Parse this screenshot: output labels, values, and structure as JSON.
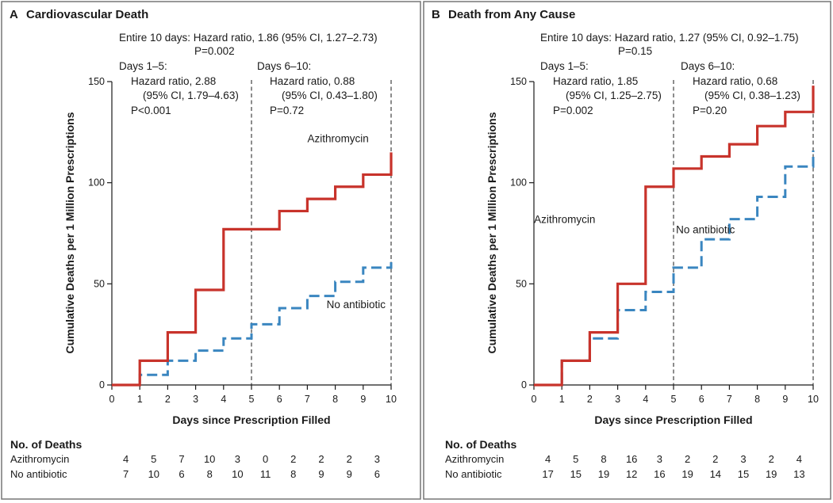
{
  "chart_data": [
    {
      "type": "line",
      "panel_letter": "A",
      "title": "Cardiovascular Death",
      "xlabel": "Days since Prescription Filled",
      "ylabel": "Cumulative Deaths per 1 Million Prescriptions",
      "xlim": [
        0,
        10
      ],
      "ylim": [
        0,
        150
      ],
      "x_ticks": [
        0,
        1,
        2,
        3,
        4,
        5,
        6,
        7,
        8,
        9,
        10
      ],
      "y_ticks": [
        0,
        50,
        100,
        150
      ],
      "reference_lines_x": [
        5,
        10
      ],
      "annotations": {
        "entire_line1": "Entire 10 days: Hazard ratio, 1.86 (95% CI, 1.27–2.73)",
        "entire_line2": "P=0.002",
        "early_line1": "Days 1–5:",
        "early_line2": "Hazard ratio, 2.88",
        "early_line3": "(95% CI, 1.79–4.63)",
        "early_line4": "P<0.001",
        "late_line1": "Days 6–10:",
        "late_line2": "Hazard ratio, 0.88",
        "late_line3": "(95% CI, 0.43–1.80)",
        "late_line4": "P=0.72"
      },
      "series": [
        {
          "name": "Azithromycin",
          "style": "solid",
          "color": "#c8332b",
          "x": [
            0,
            1,
            2,
            3,
            4,
            5,
            6,
            7,
            8,
            9,
            10
          ],
          "values": [
            0,
            12,
            26,
            47,
            77,
            77,
            86,
            92,
            98,
            104,
            115
          ],
          "label_pos": [
            9.2,
            120
          ]
        },
        {
          "name": "No antibiotic",
          "style": "dashed",
          "color": "#3a86c0",
          "x": [
            0,
            1,
            2,
            3,
            4,
            5,
            6,
            7,
            8,
            9,
            10
          ],
          "values": [
            0,
            5,
            12,
            17,
            23,
            30,
            38,
            44,
            51,
            58,
            62
          ],
          "label_pos": [
            9.8,
            38
          ]
        }
      ],
      "deaths_table": {
        "title": "No. of Deaths",
        "rows": [
          {
            "label": "Azithromycin",
            "values": [
              "4",
              "5",
              "7",
              "10",
              "3",
              "0",
              "2",
              "2",
              "2",
              "3"
            ]
          },
          {
            "label": "No antibiotic",
            "values": [
              "7",
              "10",
              "6",
              "8",
              "10",
              "11",
              "8",
              "9",
              "9",
              "6"
            ]
          }
        ]
      }
    },
    {
      "type": "line",
      "panel_letter": "B",
      "title": "Death from Any Cause",
      "xlabel": "Days since Prescription Filled",
      "ylabel": "Cumulative Deaths per 1 Million Prescriptions",
      "xlim": [
        0,
        10
      ],
      "ylim": [
        0,
        150
      ],
      "x_ticks": [
        0,
        1,
        2,
        3,
        4,
        5,
        6,
        7,
        8,
        9,
        10
      ],
      "y_ticks": [
        0,
        50,
        100,
        150
      ],
      "reference_lines_x": [
        5,
        10
      ],
      "annotations": {
        "entire_line1": "Entire 10 days: Hazard ratio, 1.27 (95% CI, 0.92–1.75)",
        "entire_line2": "P=0.15",
        "early_line1": "Days 1–5:",
        "early_line2": "Hazard ratio, 1.85",
        "early_line3": "(95% CI, 1.25–2.75)",
        "early_line4": "P=0.002",
        "late_line1": "Days 6–10:",
        "late_line2": "Hazard ratio, 0.68",
        "late_line3": "(95% CI, 0.38–1.23)",
        "late_line4": "P=0.20"
      },
      "series": [
        {
          "name": "Azithromycin",
          "style": "solid",
          "color": "#c8332b",
          "x": [
            0,
            1,
            2,
            3,
            4,
            5,
            6,
            7,
            8,
            9,
            10
          ],
          "values": [
            0,
            12,
            26,
            50,
            98,
            107,
            113,
            119,
            128,
            135,
            148
          ],
          "label_pos": [
            2.2,
            80
          ]
        },
        {
          "name": "No antibiotic",
          "style": "dashed",
          "color": "#3a86c0",
          "x": [
            0,
            1,
            2,
            3,
            4,
            5,
            6,
            7,
            8,
            9,
            10
          ],
          "values": [
            0,
            12,
            23,
            37,
            46,
            58,
            72,
            82,
            93,
            108,
            116
          ],
          "label_pos": [
            7.2,
            75
          ]
        }
      ],
      "deaths_table": {
        "title": "No. of Deaths",
        "rows": [
          {
            "label": "Azithromycin",
            "values": [
              "4",
              "5",
              "8",
              "16",
              "3",
              "2",
              "2",
              "3",
              "2",
              "4"
            ]
          },
          {
            "label": "No antibiotic",
            "values": [
              "17",
              "15",
              "19",
              "12",
              "16",
              "19",
              "14",
              "15",
              "19",
              "13"
            ]
          }
        ]
      }
    }
  ]
}
